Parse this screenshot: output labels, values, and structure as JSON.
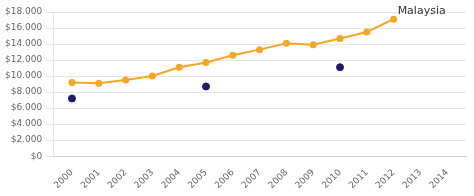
{
  "chart_data": {
    "type": "line",
    "x": [
      2000,
      2001,
      2002,
      2003,
      2004,
      2005,
      2006,
      2007,
      2008,
      2009,
      2010,
      2011,
      2012,
      2013,
      2014
    ],
    "series": [
      {
        "type": "line",
        "color": "#F5A623",
        "marker": "circle",
        "values": [
          9200,
          9100,
          9500,
          10000,
          11100,
          11700,
          12600,
          13300,
          14100,
          13900,
          14700,
          15500,
          17100,
          null,
          null
        ]
      },
      {
        "type": "scatter",
        "color": "#1a1a6e",
        "marker": "circle",
        "x": [
          2000,
          2005,
          2010
        ],
        "values": [
          7200,
          8700,
          11100
        ]
      }
    ],
    "annotations": [
      {
        "text": "Malaysia",
        "x": 2012,
        "y": 17100
      }
    ],
    "xlim": [
      1999.3,
      2014.7
    ],
    "xticks": [
      2000,
      2001,
      2002,
      2003,
      2004,
      2005,
      2006,
      2007,
      2008,
      2009,
      2010,
      2011,
      2012,
      2013,
      2014
    ],
    "ylim": [
      0,
      18000
    ],
    "yticks": [
      {
        "value": 0,
        "label": "$0"
      },
      {
        "value": 2000,
        "label": "$2.000"
      },
      {
        "value": 4000,
        "label": "$4.000"
      },
      {
        "value": 6000,
        "label": "$6.000"
      },
      {
        "value": 8000,
        "label": "$8.000"
      },
      {
        "value": 10000,
        "label": "$10.000"
      },
      {
        "value": 12000,
        "label": "$12.000"
      },
      {
        "value": 14000,
        "label": "$14.000"
      },
      {
        "value": 16000,
        "label": "$16.000"
      },
      {
        "value": 18000,
        "label": "$18.000"
      }
    ],
    "grid": "y"
  }
}
